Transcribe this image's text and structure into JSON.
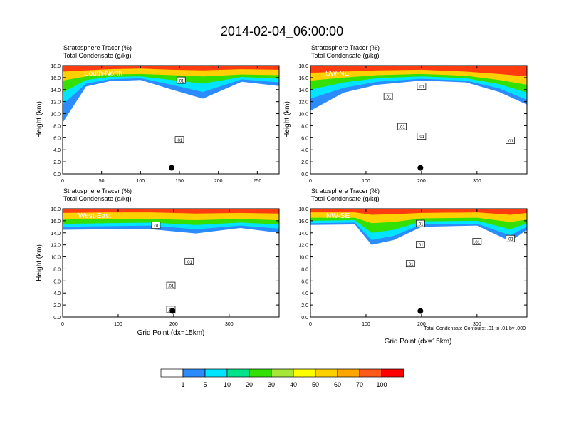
{
  "figure": {
    "title": "2014-02-04_06:00:00",
    "footnote": "Total Condensate Contours: .01 to .01 by .000",
    "colorbar": {
      "colors": [
        "#ffffff",
        "#2b8cff",
        "#00e5ff",
        "#00e38a",
        "#33e000",
        "#a6e636",
        "#ffff00",
        "#ffd000",
        "#ffa500",
        "#ff5a1a",
        "#ff0000"
      ],
      "labels": [
        "1",
        "5",
        "10",
        "20",
        "30",
        "40",
        "50",
        "60",
        "70",
        "100"
      ]
    }
  },
  "chart_data": [
    {
      "type": "heatmap",
      "panel_label": "South-North",
      "header_line1": "Stratosphere Tracer   (%)",
      "header_line2": "Total Condensate   (g/kg)",
      "ylabel": "Height (km)",
      "xlabel": "",
      "xlim": [
        0,
        278
      ],
      "ylim": [
        0,
        18
      ],
      "xticks": [
        "0",
        "50",
        "100",
        "150",
        "200",
        "250"
      ],
      "xtick_values": [
        0,
        50,
        100,
        150,
        200,
        250
      ],
      "yticks": [
        "0.0",
        "2.0",
        "4.0",
        "6.0",
        "8.0",
        "10.0",
        "12.0",
        "14.0",
        "16.0",
        "18.0"
      ],
      "contour_labels": [
        {
          "text": ".01",
          "x": 152,
          "y": 15.5
        },
        {
          "text": ".01",
          "x": 150,
          "y": 5.6
        }
      ],
      "marker": {
        "x": 140,
        "y": 1.0
      },
      "tracer_profile": [
        {
          "x": 0,
          "b1": 8.5,
          "b5": 11.5,
          "b20": 13.5,
          "b50": 15.5,
          "b100": 17.0
        },
        {
          "x": 30,
          "b1": 14.5,
          "b5": 15.0,
          "b20": 15.6,
          "b50": 16.2,
          "b100": 17.2
        },
        {
          "x": 60,
          "b1": 15.4,
          "b5": 15.7,
          "b20": 16.1,
          "b50": 16.5,
          "b100": 17.4
        },
        {
          "x": 100,
          "b1": 15.6,
          "b5": 15.9,
          "b20": 16.2,
          "b50": 16.6,
          "b100": 17.5
        },
        {
          "x": 140,
          "b1": 14.0,
          "b5": 14.8,
          "b20": 15.6,
          "b50": 16.4,
          "b100": 17.3
        },
        {
          "x": 180,
          "b1": 12.5,
          "b5": 13.6,
          "b20": 15.0,
          "b50": 16.2,
          "b100": 17.2
        },
        {
          "x": 230,
          "b1": 15.3,
          "b5": 15.7,
          "b20": 16.1,
          "b50": 16.5,
          "b100": 17.4
        },
        {
          "x": 278,
          "b1": 14.6,
          "b5": 15.2,
          "b20": 15.8,
          "b50": 16.4,
          "b100": 17.3
        }
      ]
    },
    {
      "type": "heatmap",
      "panel_label": "SW-NE",
      "header_line1": "Stratosphere Tracer   (%)",
      "header_line2": "Total Condensate   (g/kg)",
      "ylabel": "Height (km)",
      "xlabel": "",
      "xlim": [
        0,
        390
      ],
      "ylim": [
        0,
        18
      ],
      "xticks": [
        "0",
        "100",
        "200",
        "300"
      ],
      "xtick_values": [
        0,
        100,
        200,
        300
      ],
      "yticks": [
        "0.0",
        "2.0",
        "4.0",
        "6.0",
        "8.0",
        "10.0",
        "12.0",
        "14.0",
        "16.0",
        "18.0"
      ],
      "contour_labels": [
        {
          "text": ".01",
          "x": 200,
          "y": 14.5
        },
        {
          "text": ".01",
          "x": 140,
          "y": 12.8
        },
        {
          "text": ".01",
          "x": 165,
          "y": 7.8
        },
        {
          "text": ".01",
          "x": 200,
          "y": 6.2
        },
        {
          "text": ".01",
          "x": 360,
          "y": 5.5
        }
      ],
      "marker": {
        "x": 198,
        "y": 1.0
      },
      "tracer_profile": [
        {
          "x": 0,
          "b1": 10.5,
          "b5": 12.5,
          "b20": 14.0,
          "b50": 15.5,
          "b100": 16.8
        },
        {
          "x": 60,
          "b1": 13.5,
          "b5": 14.3,
          "b20": 15.2,
          "b50": 16.0,
          "b100": 17.0
        },
        {
          "x": 120,
          "b1": 14.8,
          "b5": 15.3,
          "b20": 15.9,
          "b50": 16.4,
          "b100": 17.2
        },
        {
          "x": 200,
          "b1": 15.5,
          "b5": 15.8,
          "b20": 16.2,
          "b50": 16.6,
          "b100": 17.3
        },
        {
          "x": 280,
          "b1": 15.2,
          "b5": 15.5,
          "b20": 15.9,
          "b50": 16.3,
          "b100": 17.0
        },
        {
          "x": 340,
          "b1": 13.6,
          "b5": 14.2,
          "b20": 14.9,
          "b50": 15.6,
          "b100": 16.6
        },
        {
          "x": 390,
          "b1": 11.5,
          "b5": 12.3,
          "b20": 13.5,
          "b50": 14.8,
          "b100": 16.2
        }
      ]
    },
    {
      "type": "heatmap",
      "panel_label": "West-East",
      "header_line1": "Stratosphere Tracer   (%)",
      "header_line2": "Total Condensate   (g/kg)",
      "ylabel": "Height (km)",
      "xlabel": "Grid Point (dx=15km)",
      "xlim": [
        0,
        390
      ],
      "ylim": [
        0,
        18
      ],
      "xticks": [
        "0",
        "100",
        "200",
        "300"
      ],
      "xtick_values": [
        0,
        100,
        200,
        300
      ],
      "yticks": [
        "0.0",
        "2.0",
        "4.0",
        "6.0",
        "8.0",
        "10.0",
        "12.0",
        "14.0",
        "16.0",
        "18.0"
      ],
      "contour_labels": [
        {
          "text": ".01",
          "x": 168,
          "y": 15.2
        },
        {
          "text": ".01",
          "x": 228,
          "y": 9.2
        },
        {
          "text": ".01",
          "x": 195,
          "y": 5.2
        },
        {
          "text": ".01",
          "x": 195,
          "y": 1.2
        }
      ],
      "marker": {
        "x": 198,
        "y": 1.0
      },
      "tracer_profile": [
        {
          "x": 0,
          "b1": 14.5,
          "b5": 15.0,
          "b20": 15.5,
          "b50": 16.2,
          "b100": 17.3
        },
        {
          "x": 80,
          "b1": 14.6,
          "b5": 15.1,
          "b20": 15.6,
          "b50": 16.3,
          "b100": 17.4
        },
        {
          "x": 160,
          "b1": 14.6,
          "b5": 15.2,
          "b20": 15.7,
          "b50": 16.3,
          "b100": 17.4
        },
        {
          "x": 240,
          "b1": 13.9,
          "b5": 14.6,
          "b20": 15.3,
          "b50": 16.1,
          "b100": 17.2
        },
        {
          "x": 320,
          "b1": 14.8,
          "b5": 15.2,
          "b20": 15.7,
          "b50": 16.3,
          "b100": 17.3
        },
        {
          "x": 390,
          "b1": 14.0,
          "b5": 14.7,
          "b20": 15.4,
          "b50": 16.1,
          "b100": 17.2
        }
      ]
    },
    {
      "type": "heatmap",
      "panel_label": "NW-SE",
      "header_line1": "Stratosphere Tracer   (%)",
      "header_line2": "Total Condensate   (g/kg)",
      "ylabel": "",
      "xlabel": "Grid Point (dx=15km)",
      "xlim": [
        0,
        390
      ],
      "ylim": [
        0,
        18
      ],
      "xticks": [
        "0",
        "100",
        "200",
        "300"
      ],
      "xtick_values": [
        0,
        100,
        200,
        300
      ],
      "yticks": [
        "0.0",
        "2.0",
        "4.0",
        "6.0",
        "8.0",
        "10.0",
        "12.0",
        "14.0",
        "16.0",
        "18.0"
      ],
      "contour_labels": [
        {
          "text": ".01",
          "x": 198,
          "y": 15.5
        },
        {
          "text": ".01",
          "x": 198,
          "y": 12.0
        },
        {
          "text": ".01",
          "x": 300,
          "y": 12.5
        },
        {
          "text": ".01",
          "x": 360,
          "y": 13.0
        },
        {
          "text": ".01",
          "x": 180,
          "y": 8.8
        }
      ],
      "marker": {
        "x": 198,
        "y": 1.0
      },
      "tracer_profile": [
        {
          "x": 0,
          "b1": 15.3,
          "b5": 15.6,
          "b20": 16.0,
          "b50": 16.5,
          "b100": 17.4
        },
        {
          "x": 80,
          "b1": 15.4,
          "b5": 15.7,
          "b20": 16.1,
          "b50": 16.5,
          "b100": 17.4
        },
        {
          "x": 110,
          "b1": 12.0,
          "b5": 12.8,
          "b20": 14.0,
          "b50": 15.6,
          "b100": 17.0
        },
        {
          "x": 150,
          "b1": 12.8,
          "b5": 13.5,
          "b20": 14.5,
          "b50": 15.8,
          "b100": 17.1
        },
        {
          "x": 200,
          "b1": 15.0,
          "b5": 15.4,
          "b20": 15.9,
          "b50": 16.4,
          "b100": 17.3
        },
        {
          "x": 300,
          "b1": 15.2,
          "b5": 15.5,
          "b20": 16.0,
          "b50": 16.5,
          "b100": 17.4
        },
        {
          "x": 360,
          "b1": 12.6,
          "b5": 13.6,
          "b20": 14.6,
          "b50": 15.8,
          "b100": 17.0
        },
        {
          "x": 390,
          "b1": 14.5,
          "b5": 15.0,
          "b20": 15.6,
          "b50": 16.2,
          "b100": 17.3
        }
      ]
    }
  ]
}
